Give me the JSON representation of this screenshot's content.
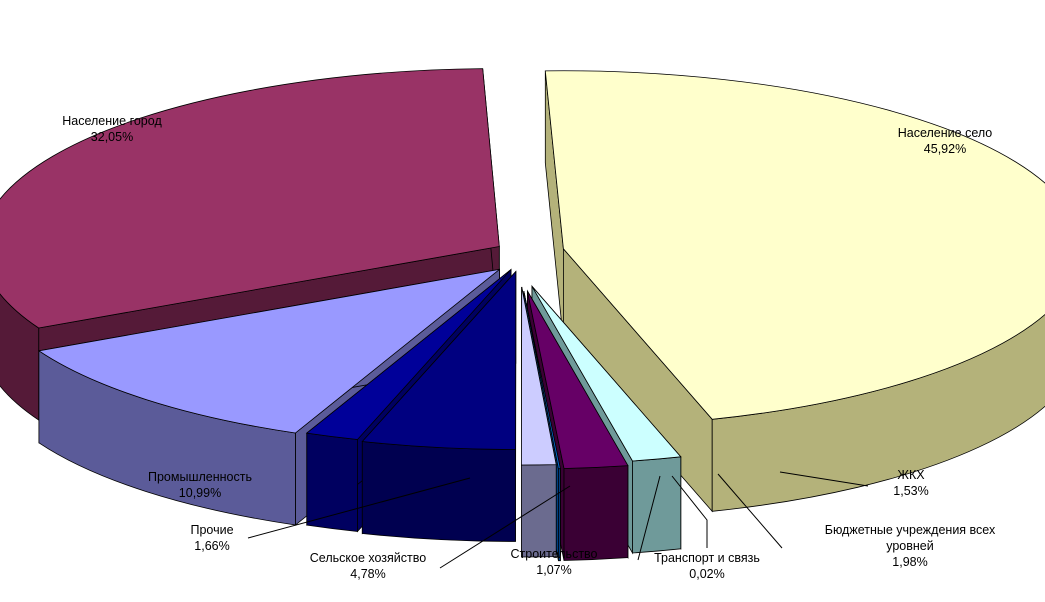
{
  "chart_data": {
    "type": "pie",
    "style": "3d-exploded",
    "title": "",
    "legend": "none",
    "slices": [
      {
        "name": "Население село",
        "label": "Население село",
        "value": 45.92,
        "value_label": "45,92%",
        "top_color": "#ffffcc",
        "side_color": "#b4b27a"
      },
      {
        "name": "ЖКХ",
        "label": "ЖКХ",
        "value": 1.53,
        "value_label": "1,53%",
        "top_color": "#ccffff",
        "side_color": "#6f9a9a"
      },
      {
        "name": "Бюджетные учреждения всех уровней",
        "label": "Бюджетные учреждения всех уровней",
        "label_lines": [
          "Бюджетные учреждения всех",
          "уровней"
        ],
        "value": 1.98,
        "value_label": "1,98%",
        "top_color": "#660066",
        "side_color": "#3a0034"
      },
      {
        "name": "Транспорт и связь",
        "label": "Транспорт и связь",
        "value": 0.02,
        "value_label": "0,02%",
        "top_color": "#0066cc",
        "side_color": "#023f80"
      },
      {
        "name": "Строительство",
        "label": "Строительство",
        "value": 1.07,
        "value_label": "1,07%",
        "top_color": "#ccccff",
        "side_color": "#6b6b8f"
      },
      {
        "name": "Сельское хозяйство",
        "label": "Сельское хозяйство",
        "value": 4.78,
        "value_label": "4,78%",
        "top_color": "#000080",
        "side_color": "#000050"
      },
      {
        "name": "Прочие",
        "label": "Прочие",
        "value": 1.66,
        "value_label": "1,66%",
        "top_color": "#000099",
        "side_color": "#000060"
      },
      {
        "name": "Промышленность",
        "label": "Промышленность",
        "value": 10.99,
        "value_label": "10,99%",
        "top_color": "#9999ff",
        "side_color": "#5b5b99"
      },
      {
        "name": "Население город",
        "label": "Население город",
        "value": 32.05,
        "value_label": "32,05%",
        "top_color": "#993366",
        "side_color": "#551a38"
      }
    ]
  }
}
